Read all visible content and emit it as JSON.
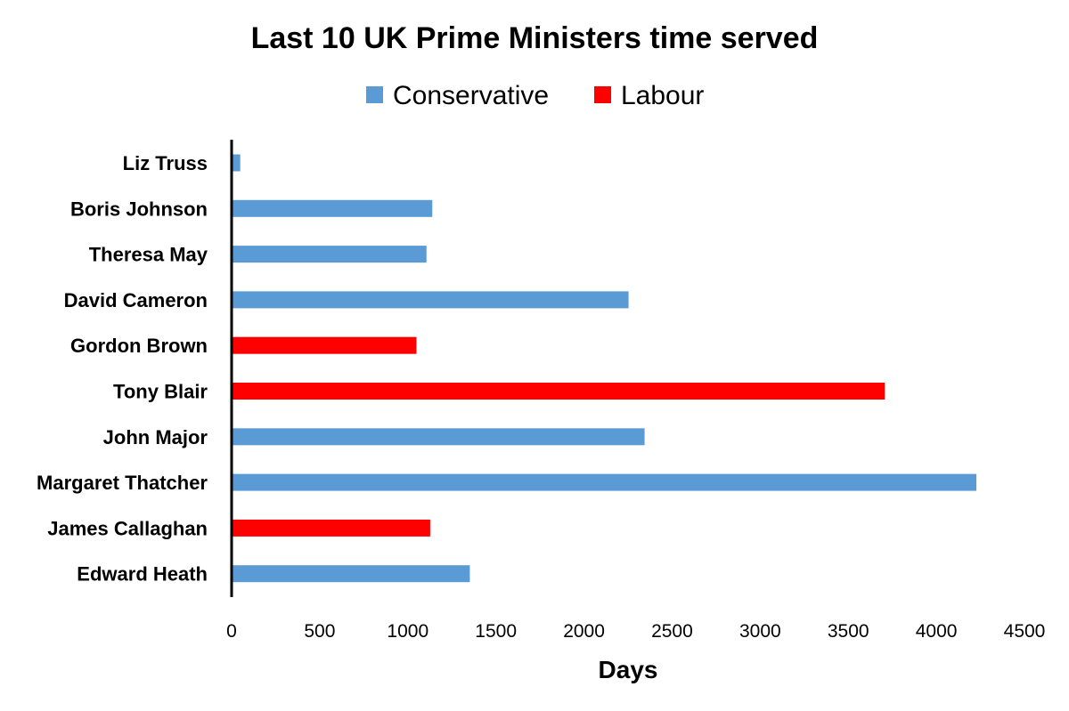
{
  "chart_data": {
    "type": "bar",
    "orientation": "horizontal",
    "title": "Last 10 UK Prime Ministers time served",
    "xlabel": "Days",
    "ylabel": "",
    "xlim": [
      0,
      4500
    ],
    "xticks": [
      0,
      500,
      1000,
      1500,
      2000,
      2500,
      3000,
      3500,
      4000,
      4500
    ],
    "xtick_labels": [
      "0",
      "500",
      "1000",
      "1500",
      "2000",
      "2500",
      "3000",
      "3500",
      "4000",
      "4500"
    ],
    "grid": false,
    "legend_position": "top",
    "legend": [
      {
        "name": "Conservative",
        "color": "#5b9bd5"
      },
      {
        "name": "Labour",
        "color": "#ff0000"
      }
    ],
    "categories": [
      "Liz Truss",
      "Boris Johnson",
      "Theresa May",
      "David Cameron",
      "Gordon Brown",
      "Tony Blair",
      "John Major",
      "Margaret Thatcher",
      "James Callaghan",
      "Edward Heath"
    ],
    "values": [
      49,
      1139,
      1106,
      2253,
      1049,
      3707,
      2344,
      4227,
      1127,
      1352
    ],
    "party": [
      "Conservative",
      "Conservative",
      "Conservative",
      "Conservative",
      "Labour",
      "Labour",
      "Conservative",
      "Conservative",
      "Labour",
      "Conservative"
    ]
  }
}
